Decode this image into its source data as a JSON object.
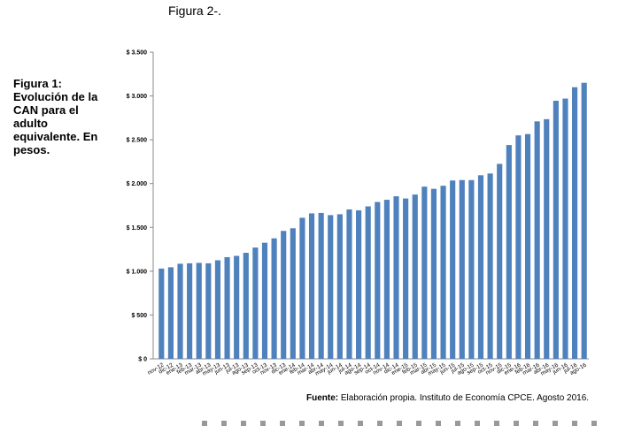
{
  "page": {
    "top_title": "Figura 2-.",
    "side_caption": "Figura 1: Evolución de la CAN para el adulto equivalente. En pesos.",
    "source_label": "Fuente:",
    "source_text": "Elaboración propia. Instituto de Economía CPCE. Agosto 2016."
  },
  "chart_data": {
    "type": "bar",
    "title": "",
    "xlabel": "",
    "ylabel": "",
    "ylim": [
      0,
      3500
    ],
    "yticks": [
      0,
      500,
      1000,
      1500,
      2000,
      2500,
      3000,
      3500
    ],
    "ytick_labels": [
      "$ 0",
      "$ 500",
      "$ 1.000",
      "$ 1.500",
      "$ 2.000",
      "$ 2.500",
      "$ 3.000",
      "$ 3.500"
    ],
    "bar_color": "#4f81bd",
    "grid": false,
    "legend": "none",
    "categories": [
      "nov-12",
      "dic-12",
      "ene-13",
      "feb-13",
      "mar-13",
      "abr-13",
      "may-13",
      "jun-13",
      "jul-13",
      "ago-13",
      "sep-13",
      "oct-13",
      "nov-13",
      "dic-13",
      "ene-14",
      "feb-14",
      "mar-14",
      "abr-14",
      "may-14",
      "jun-14",
      "jul-14",
      "ago-14",
      "sep-14",
      "oct-14",
      "nov-14",
      "dic-14",
      "ene-15",
      "feb-15",
      "mar-15",
      "abr-15",
      "may-15",
      "jun-15",
      "jul-15",
      "ago-15",
      "sep-15",
      "oct-15",
      "nov-15",
      "dic-15",
      "ene-16",
      "feb-16",
      "mar-16",
      "abr-16",
      "may-16",
      "jun-16",
      "jul-16",
      "ago-16"
    ],
    "values": [
      1030,
      1045,
      1085,
      1090,
      1095,
      1090,
      1125,
      1160,
      1175,
      1210,
      1270,
      1325,
      1375,
      1460,
      1490,
      1610,
      1660,
      1665,
      1640,
      1650,
      1705,
      1695,
      1740,
      1790,
      1815,
      1855,
      1830,
      1875,
      1965,
      1940,
      1975,
      2035,
      2040,
      2040,
      2095,
      2115,
      2225,
      2440,
      2550,
      2565,
      2710,
      2735,
      2945,
      2970,
      3100,
      3150
    ]
  }
}
